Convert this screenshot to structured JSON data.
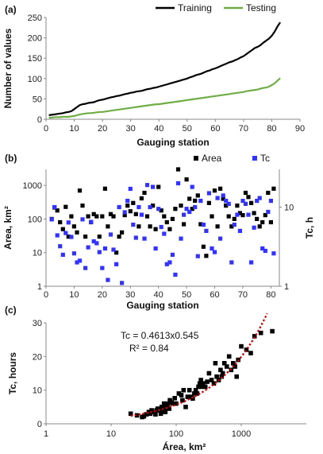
{
  "chart_data": [
    {
      "panel": "(a)",
      "type": "line",
      "xlabel": "Gauging station",
      "ylabel": "Number of values",
      "xlim": [
        0,
        90
      ],
      "ylim": [
        0,
        250
      ],
      "xticks": [
        "0",
        "10",
        "20",
        "30",
        "40",
        "50",
        "60",
        "70",
        "80",
        "90"
      ],
      "yticks": [
        "0",
        "50",
        "100",
        "150",
        "200",
        "250"
      ],
      "legend_position": "top",
      "series": [
        {
          "name": "Training",
          "color": "#000000",
          "x": [
            1,
            2,
            3,
            4,
            5,
            6,
            7,
            8,
            9,
            10,
            11,
            12,
            13,
            14,
            15,
            16,
            17,
            18,
            19,
            20,
            21,
            22,
            23,
            24,
            25,
            26,
            27,
            28,
            29,
            30,
            31,
            32,
            33,
            34,
            35,
            36,
            37,
            38,
            39,
            40,
            41,
            42,
            43,
            44,
            45,
            46,
            47,
            48,
            49,
            50,
            51,
            52,
            53,
            54,
            55,
            56,
            57,
            58,
            59,
            60,
            61,
            62,
            63,
            64,
            65,
            66,
            67,
            68,
            69,
            70,
            71,
            72,
            73,
            74,
            75,
            76,
            77,
            78,
            79,
            80,
            81,
            82,
            83
          ],
          "values": [
            10,
            11,
            12,
            13,
            14,
            15,
            17,
            18,
            20,
            25,
            30,
            35,
            37,
            38,
            40,
            41,
            42,
            45,
            47,
            48,
            50,
            52,
            54,
            55,
            57,
            58,
            60,
            62,
            63,
            65,
            66,
            68,
            69,
            70,
            72,
            74,
            75,
            77,
            78,
            80,
            82,
            84,
            86,
            88,
            90,
            92,
            94,
            96,
            98,
            100,
            103,
            105,
            108,
            110,
            112,
            115,
            118,
            120,
            123,
            125,
            128,
            131,
            134,
            137,
            140,
            142,
            145,
            148,
            152,
            155,
            160,
            165,
            170,
            175,
            178,
            182,
            188,
            193,
            198,
            205,
            215,
            228,
            238
          ]
        },
        {
          "name": "Testing",
          "color": "#70ad47",
          "x": [
            1,
            2,
            3,
            4,
            5,
            6,
            7,
            8,
            9,
            10,
            11,
            12,
            13,
            14,
            15,
            16,
            17,
            18,
            19,
            20,
            21,
            22,
            23,
            24,
            25,
            26,
            27,
            28,
            29,
            30,
            31,
            32,
            33,
            34,
            35,
            36,
            37,
            38,
            39,
            40,
            41,
            42,
            43,
            44,
            45,
            46,
            47,
            48,
            49,
            50,
            51,
            52,
            53,
            54,
            55,
            56,
            57,
            58,
            59,
            60,
            61,
            62,
            63,
            64,
            65,
            66,
            67,
            68,
            69,
            70,
            71,
            72,
            73,
            74,
            75,
            76,
            77,
            78,
            79,
            80,
            81,
            82,
            83
          ],
          "values": [
            4,
            4,
            5,
            5,
            5,
            6,
            6,
            6,
            7,
            8,
            10,
            12,
            13,
            14,
            15,
            15,
            16,
            17,
            18,
            18,
            19,
            20,
            21,
            22,
            23,
            24,
            25,
            26,
            27,
            28,
            29,
            30,
            31,
            32,
            33,
            34,
            35,
            36,
            37,
            37,
            38,
            39,
            40,
            41,
            42,
            43,
            44,
            45,
            46,
            47,
            48,
            49,
            50,
            51,
            52,
            53,
            54,
            55,
            56,
            57,
            58,
            59,
            60,
            61,
            62,
            63,
            64,
            65,
            66,
            67,
            69,
            70,
            71,
            72,
            73,
            75,
            77,
            78,
            80,
            84,
            88,
            95,
            101
          ]
        }
      ]
    },
    {
      "panel": "(b)",
      "type": "scatter",
      "xlabel": "Gauging station",
      "ylabel": "Area, km²",
      "ylabel_right": "Tc, h",
      "xlim": [
        0,
        83
      ],
      "ylim": [
        1,
        3000
      ],
      "ylim_right": [
        1,
        30
      ],
      "y_scale": "log",
      "xticks": [
        "0",
        "10",
        "20",
        "30",
        "40",
        "50",
        "60",
        "70",
        "80"
      ],
      "yticks": [
        "1",
        "10",
        "100",
        "1000"
      ],
      "yticks_right": [
        "1",
        "10"
      ],
      "legend_position": "top",
      "series": [
        {
          "name": "Area",
          "color": "#000000",
          "axis": "left",
          "x": [
            2,
            3,
            4,
            5,
            6,
            7,
            8,
            9,
            10,
            11,
            12,
            13,
            14,
            15,
            16,
            17,
            18,
            19,
            20,
            21,
            22,
            23,
            24,
            25,
            26,
            27,
            28,
            29,
            30,
            31,
            32,
            33,
            34,
            35,
            36,
            37,
            38,
            39,
            40,
            41,
            42,
            43,
            44,
            45,
            46,
            47,
            48,
            49,
            50,
            51,
            52,
            53,
            54,
            55,
            56,
            57,
            58,
            59,
            60,
            61,
            62,
            63,
            64,
            65,
            66,
            67,
            68,
            69,
            70,
            71,
            72,
            73,
            74,
            75,
            76,
            77,
            78,
            79,
            80,
            81
          ],
          "values": [
            100,
            220,
            180,
            80,
            50,
            230,
            30,
            120,
            60,
            40,
            700,
            250,
            30,
            120,
            80,
            140,
            120,
            30,
            120,
            800,
            60,
            140,
            120,
            10,
            30,
            40,
            130,
            250,
            170,
            300,
            140,
            60,
            410,
            600,
            120,
            60,
            250,
            50,
            900,
            180,
            120,
            80,
            50,
            100,
            200,
            3000,
            250,
            70,
            1500,
            400,
            200,
            350,
            500,
            70,
            15,
            8,
            300,
            120,
            700,
            60,
            800,
            400,
            250,
            120,
            60,
            100,
            250,
            150,
            130,
            600,
            450,
            300,
            150,
            100,
            60,
            80,
            130,
            600,
            80,
            800
          ]
        },
        {
          "name": "Tc",
          "color": "#3333ff",
          "axis": "right",
          "x": [
            2,
            3,
            4,
            5,
            6,
            7,
            8,
            9,
            10,
            11,
            12,
            13,
            14,
            15,
            16,
            17,
            18,
            19,
            20,
            21,
            22,
            23,
            24,
            25,
            26,
            27,
            28,
            29,
            30,
            31,
            32,
            33,
            34,
            35,
            36,
            37,
            38,
            39,
            40,
            41,
            42,
            43,
            44,
            45,
            46,
            47,
            48,
            49,
            50,
            51,
            52,
            53,
            54,
            55,
            56,
            57,
            58,
            59,
            60,
            61,
            62,
            63,
            64,
            65,
            66,
            67,
            68,
            69,
            70,
            71,
            72,
            73,
            74,
            75,
            76,
            77,
            78,
            79,
            80,
            81
          ],
          "values": [
            7,
            10,
            4.4,
            3.2,
            2.5,
            4.7,
            6.4,
            4.2,
            2.6,
            2,
            2.1,
            7,
            1.7,
            3.1,
            6.5,
            3.7,
            3.5,
            2.7,
            1.7,
            3,
            1.2,
            4.5,
            2.9,
            1.9,
            10,
            1.1,
            8.6,
            12,
            17,
            6,
            4.1,
            10,
            8,
            4,
            19,
            10,
            18,
            3,
            9.5,
            5.6,
            4.6,
            1.9,
            2,
            2.5,
            1.4,
            20,
            4,
            8,
            9.5,
            8.7,
            18,
            10,
            2.4,
            12,
            6,
            5,
            15,
            3,
            2.7,
            13,
            4,
            14,
            12,
            11,
            2,
            6,
            8,
            5,
            12,
            11,
            8,
            2,
            5.5,
            12,
            13,
            3,
            2.8,
            8.7,
            12,
            2.6
          ]
        }
      ]
    },
    {
      "panel": "(c)",
      "type": "scatter",
      "xlabel": "Área, km²",
      "ylabel": "Tc, hours",
      "x_scale": "log",
      "xlim": [
        1,
        10000
      ],
      "ylim": [
        0,
        30
      ],
      "xticks": [
        "1",
        "10",
        "100",
        "1000"
      ],
      "yticks": [
        "0",
        "10",
        "20",
        "30"
      ],
      "annotations": [
        "Tc = 0.4613x0.545",
        "R² = 0.84"
      ],
      "fit": {
        "a": 0.4613,
        "b": 0.545,
        "x_range": [
          20,
          2500
        ],
        "color": "#cc0000"
      },
      "series": [
        {
          "name": "observed",
          "color": "#000000",
          "x": [
            20,
            25,
            30,
            32,
            35,
            38,
            40,
            42,
            45,
            48,
            50,
            52,
            55,
            58,
            60,
            62,
            65,
            68,
            70,
            72,
            75,
            78,
            80,
            85,
            90,
            95,
            100,
            110,
            120,
            125,
            130,
            140,
            150,
            160,
            170,
            180,
            190,
            200,
            210,
            220,
            230,
            240,
            250,
            260,
            280,
            300,
            320,
            350,
            380,
            400,
            420,
            450,
            480,
            500,
            520,
            550,
            600,
            650,
            700,
            750,
            800,
            850,
            900,
            1000,
            1200,
            1400,
            1600,
            2000,
            3000
          ],
          "y": [
            3,
            2.5,
            2,
            2.2,
            2.8,
            3.5,
            3,
            4,
            3.5,
            2.8,
            4,
            4.5,
            4,
            3,
            5,
            4,
            6,
            3.5,
            5,
            4.7,
            6,
            4.5,
            7,
            6.3,
            6,
            7.6,
            6,
            9,
            8.5,
            7,
            10,
            5,
            8,
            10,
            8,
            7.5,
            9,
            10,
            9,
            11,
            12,
            13,
            11,
            12,
            11,
            12.5,
            15,
            13,
            12,
            18,
            14,
            13,
            16,
            14,
            15,
            18,
            17,
            20,
            16,
            18,
            17,
            14,
            19,
            23,
            22,
            21,
            26,
            27,
            27.5
          ]
        }
      ]
    }
  ]
}
